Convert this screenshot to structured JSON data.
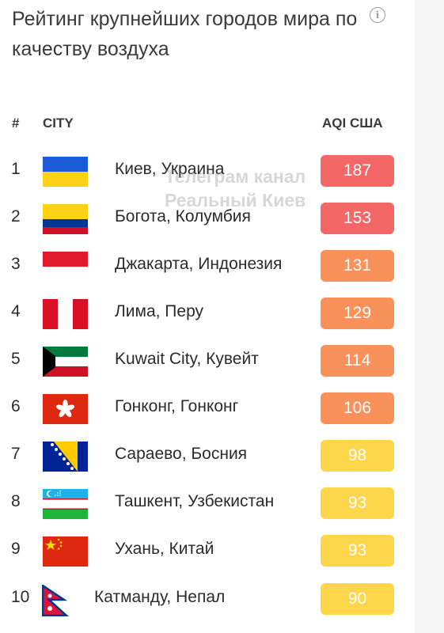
{
  "title": "Рейтинг крупнейших городов мира по качеству воздуха",
  "columns": {
    "rank": "#",
    "city": "CITY",
    "aqi": "AQI США"
  },
  "colors": {
    "red": "#f46767",
    "orange": "#f8915a",
    "yellow": "#fdd64b"
  },
  "watermark": [
    "Телеграм канал",
    "Реальный Киев"
  ],
  "rows": [
    {
      "rank": "1",
      "city": "Киев, Украина",
      "aqi": "187",
      "flag": "ukraine-flag-icon",
      "level": "red"
    },
    {
      "rank": "2",
      "city": "Богота, Колумбия",
      "aqi": "153",
      "flag": "colombia-flag-icon",
      "level": "red"
    },
    {
      "rank": "3",
      "city": "Джакарта, Индонезия",
      "aqi": "131",
      "flag": "indonesia-flag-icon",
      "level": "orange"
    },
    {
      "rank": "4",
      "city": "Лима, Перу",
      "aqi": "129",
      "flag": "peru-flag-icon",
      "level": "orange"
    },
    {
      "rank": "5",
      "city": "Kuwait City, Кувейт",
      "aqi": "114",
      "flag": "kuwait-flag-icon",
      "level": "orange"
    },
    {
      "rank": "6",
      "city": "Гонконг, Гонконг",
      "aqi": "106",
      "flag": "hong-kong-flag-icon",
      "level": "orange"
    },
    {
      "rank": "7",
      "city": "Сараево, Босния",
      "aqi": "98",
      "flag": "bosnia-flag-icon",
      "level": "yellow"
    },
    {
      "rank": "8",
      "city": "Ташкент, Узбекистан",
      "aqi": "93",
      "flag": "uzbekistan-flag-icon",
      "level": "yellow"
    },
    {
      "rank": "9",
      "city": "Ухань, Китай",
      "aqi": "93",
      "flag": "china-flag-icon",
      "level": "yellow"
    },
    {
      "rank": "10",
      "city": "Катманду, Непал",
      "aqi": "90",
      "flag": "nepal-flag-icon",
      "level": "yellow"
    }
  ]
}
